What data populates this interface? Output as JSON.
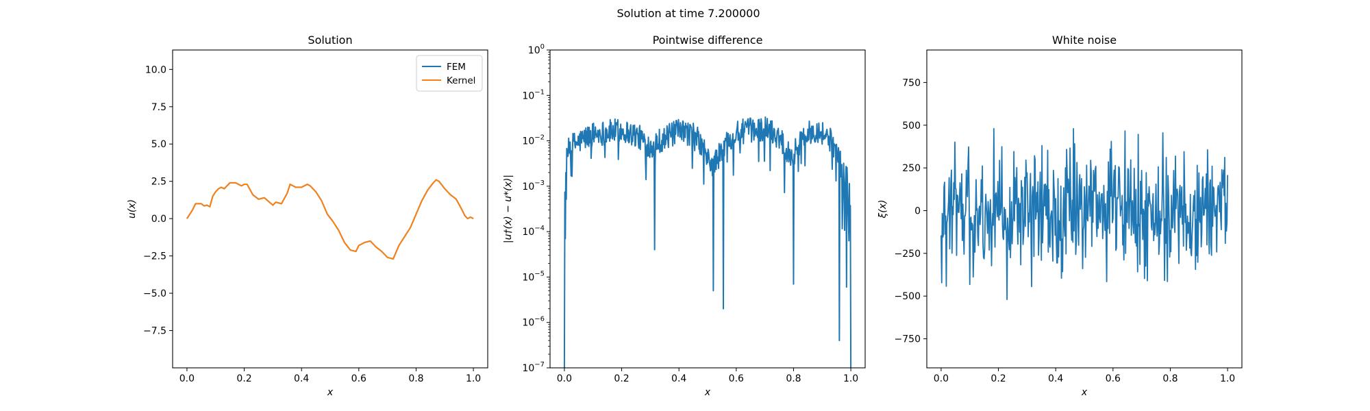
{
  "figure": {
    "suptitle": "Solution at time 7.200000"
  },
  "colors": {
    "fem": "#1f77b4",
    "kernel": "#ff7f0e",
    "diff": "#1f77b4",
    "noise": "#1f77b4",
    "axes": "#000000"
  },
  "chart_data": [
    {
      "id": "solution",
      "type": "line",
      "title": "Solution",
      "xlabel": "x",
      "ylabel": "u(x)",
      "xlim": [
        -0.05,
        1.05
      ],
      "ylim": [
        -10,
        11.3
      ],
      "xticks": [
        0.0,
        0.2,
        0.4,
        0.6,
        0.8,
        1.0
      ],
      "xtick_labels": [
        "0.0",
        "0.2",
        "0.4",
        "0.6",
        "0.8",
        "1.0"
      ],
      "yticks": [
        -7.5,
        -5.0,
        -2.5,
        0.0,
        2.5,
        5.0,
        7.5,
        10.0
      ],
      "ytick_labels": [
        "−7.5",
        "−5.0",
        "−2.5",
        "0.0",
        "2.5",
        "5.0",
        "7.5",
        "10.0"
      ],
      "legend": {
        "position": "top-right",
        "entries": [
          "FEM",
          "Kernel"
        ]
      },
      "x": [
        0.0,
        0.02,
        0.03,
        0.04,
        0.05,
        0.06,
        0.07,
        0.08,
        0.09,
        0.1,
        0.11,
        0.12,
        0.13,
        0.15,
        0.17,
        0.19,
        0.2,
        0.21,
        0.23,
        0.25,
        0.27,
        0.3,
        0.31,
        0.33,
        0.35,
        0.36,
        0.38,
        0.4,
        0.42,
        0.43,
        0.45,
        0.47,
        0.49,
        0.51,
        0.53,
        0.55,
        0.57,
        0.59,
        0.6,
        0.62,
        0.64,
        0.66,
        0.68,
        0.7,
        0.72,
        0.74,
        0.76,
        0.78,
        0.8,
        0.82,
        0.84,
        0.86,
        0.87,
        0.88,
        0.9,
        0.92,
        0.94,
        0.96,
        0.97,
        0.98,
        0.99,
        1.0
      ],
      "series": [
        {
          "name": "FEM",
          "values": [
            0.0,
            0.6,
            1.0,
            1.0,
            1.0,
            0.85,
            0.9,
            0.8,
            1.5,
            1.8,
            2.0,
            2.1,
            2.0,
            2.4,
            2.4,
            2.2,
            2.3,
            2.3,
            1.6,
            1.3,
            1.4,
            0.9,
            1.1,
            1.0,
            1.7,
            2.3,
            2.1,
            2.1,
            2.3,
            2.2,
            1.8,
            1.2,
            0.3,
            -0.2,
            -0.8,
            -1.6,
            -2.1,
            -2.2,
            -1.8,
            -1.6,
            -1.5,
            -1.9,
            -2.2,
            -2.6,
            -2.7,
            -1.8,
            -1.2,
            -0.6,
            0.3,
            1.2,
            1.9,
            2.4,
            2.6,
            2.5,
            2.0,
            1.6,
            1.3,
            0.6,
            0.2,
            0.0,
            0.1,
            0.0
          ]
        },
        {
          "name": "Kernel",
          "values": [
            0.0,
            0.6,
            1.0,
            1.0,
            1.0,
            0.85,
            0.9,
            0.8,
            1.5,
            1.8,
            2.0,
            2.1,
            2.0,
            2.4,
            2.4,
            2.2,
            2.3,
            2.3,
            1.6,
            1.3,
            1.4,
            0.9,
            1.1,
            1.0,
            1.7,
            2.3,
            2.1,
            2.1,
            2.3,
            2.2,
            1.8,
            1.2,
            0.3,
            -0.2,
            -0.8,
            -1.6,
            -2.1,
            -2.2,
            -1.8,
            -1.6,
            -1.5,
            -1.9,
            -2.2,
            -2.6,
            -2.7,
            -1.8,
            -1.2,
            -0.6,
            0.3,
            1.2,
            1.9,
            2.4,
            2.6,
            2.5,
            2.0,
            1.6,
            1.3,
            0.6,
            0.2,
            0.0,
            0.1,
            0.0
          ]
        }
      ]
    },
    {
      "id": "difference",
      "type": "line",
      "title": "Pointwise difference",
      "xlabel": "x",
      "ylabel": "|u†(x) − u*(x)|",
      "yscale": "log",
      "xlim": [
        -0.05,
        1.05
      ],
      "ylim": [
        1e-07,
        1
      ],
      "xticks": [
        0.0,
        0.2,
        0.4,
        0.6,
        0.8,
        1.0
      ],
      "xtick_labels": [
        "0.0",
        "0.2",
        "0.4",
        "0.6",
        "0.8",
        "1.0"
      ],
      "yticks": [
        1e-07,
        1e-06,
        1e-05,
        0.0001,
        0.001,
        0.01,
        0.1,
        1
      ],
      "ytick_labels": [
        {
          "base": "10",
          "exp": "−7"
        },
        {
          "base": "10",
          "exp": "−6"
        },
        {
          "base": "10",
          "exp": "−5"
        },
        {
          "base": "10",
          "exp": "−4"
        },
        {
          "base": "10",
          "exp": "−3"
        },
        {
          "base": "10",
          "exp": "−2"
        },
        {
          "base": "10",
          "exp": "−1"
        },
        {
          "base": "10",
          "exp": "0"
        }
      ],
      "x_start": 0.0,
      "x_end": 1.0,
      "samples": 600,
      "series": [
        {
          "name": "",
          "envelope": [
            [
              0.0,
              0.0
            ],
            [
              0.005,
              0.002
            ],
            [
              0.01,
              0.005
            ],
            [
              0.02,
              0.008
            ],
            [
              0.05,
              0.01
            ],
            [
              0.1,
              0.015
            ],
            [
              0.2,
              0.018
            ],
            [
              0.25,
              0.014
            ],
            [
              0.3,
              0.008
            ],
            [
              0.32,
              0.01
            ],
            [
              0.35,
              0.012
            ],
            [
              0.4,
              0.017
            ],
            [
              0.45,
              0.015
            ],
            [
              0.48,
              0.008
            ],
            [
              0.5,
              0.004
            ],
            [
              0.52,
              0.003
            ],
            [
              0.55,
              0.006
            ],
            [
              0.58,
              0.013
            ],
            [
              0.62,
              0.017
            ],
            [
              0.7,
              0.02
            ],
            [
              0.75,
              0.013
            ],
            [
              0.78,
              0.006
            ],
            [
              0.8,
              0.005
            ],
            [
              0.83,
              0.012
            ],
            [
              0.88,
              0.019
            ],
            [
              0.92,
              0.013
            ],
            [
              0.95,
              0.006
            ],
            [
              0.97,
              0.002
            ],
            [
              0.99,
              0.002
            ],
            [
              1.0,
              0.0
            ]
          ],
          "dips": [
            [
              0.0,
              1e-07
            ],
            [
              0.003,
              7e-05
            ],
            [
              0.315,
              4e-05
            ],
            [
              0.52,
              5e-06
            ],
            [
              0.555,
              2e-06
            ],
            [
              0.8,
              7e-06
            ],
            [
              0.96,
              4e-07
            ],
            [
              0.985,
              6e-06
            ],
            [
              1.0,
              1e-07
            ]
          ]
        }
      ]
    },
    {
      "id": "noise",
      "type": "line",
      "title": "White noise",
      "xlabel": "x",
      "ylabel": "ξ(x)",
      "xlim": [
        -0.05,
        1.05
      ],
      "ylim": [
        -920,
        940
      ],
      "xticks": [
        0.0,
        0.2,
        0.4,
        0.6,
        0.8,
        1.0
      ],
      "xtick_labels": [
        "0.0",
        "0.2",
        "0.4",
        "0.6",
        "0.8",
        "1.0"
      ],
      "yticks": [
        -750,
        -500,
        -250,
        0,
        250,
        500,
        750
      ],
      "ytick_labels": [
        "−750",
        "−500",
        "−250",
        "0",
        "250",
        "500",
        "750"
      ],
      "x_start": 0.0,
      "x_end": 1.0,
      "samples": 500,
      "series": [
        {
          "name": "",
          "std": 190,
          "range": [
            -520,
            480
          ]
        }
      ]
    }
  ]
}
